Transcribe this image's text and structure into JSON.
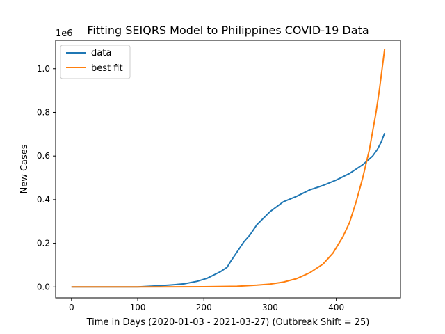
{
  "chart_data": {
    "type": "line",
    "title": "Fitting SEIQRS Model to Philippines COVID-19 Data",
    "xlabel": "Time in Days (2020-01-03 - 2021-03-27) (Outbreak Shift = 25)",
    "ylabel": "New Cases",
    "y_offset_label": "1e6",
    "xlim": [
      -24,
      497
    ],
    "ylim": [
      -50000,
      1130000
    ],
    "x_ticks": [
      0,
      100,
      200,
      300,
      400
    ],
    "x_tick_labels": [
      "0",
      "100",
      "200",
      "300",
      "400"
    ],
    "y_ticks": [
      0,
      200000,
      400000,
      600000,
      800000,
      1000000
    ],
    "y_tick_labels": [
      "0.0",
      "0.2",
      "0.4",
      "0.6",
      "0.8",
      "1.0"
    ],
    "grid": false,
    "legend_position": "top-left",
    "series": [
      {
        "name": "data",
        "color": "#1f77b4",
        "x": [
          0,
          50,
          100,
          110,
          130,
          150,
          170,
          190,
          205,
          215,
          225,
          235,
          240,
          250,
          260,
          270,
          280,
          290,
          300,
          320,
          340,
          360,
          380,
          400,
          420,
          440,
          455,
          462,
          468,
          473
        ],
        "y": [
          0,
          0,
          500,
          2000,
          5000,
          9000,
          14000,
          26000,
          40000,
          55000,
          70000,
          90000,
          115000,
          160000,
          205000,
          240000,
          285000,
          315000,
          345000,
          390000,
          415000,
          445000,
          465000,
          490000,
          520000,
          560000,
          600000,
          630000,
          665000,
          705000
        ]
      },
      {
        "name": "best fit",
        "color": "#ff7f0e",
        "x": [
          0,
          100,
          200,
          250,
          280,
          300,
          320,
          340,
          360,
          380,
          395,
          410,
          420,
          430,
          440,
          450,
          460,
          465,
          473
        ],
        "y": [
          0,
          0,
          1000,
          3000,
          8000,
          13000,
          22000,
          38000,
          65000,
          105000,
          155000,
          230000,
          295000,
          390000,
          500000,
          630000,
          800000,
          900000,
          1090000
        ]
      }
    ]
  }
}
